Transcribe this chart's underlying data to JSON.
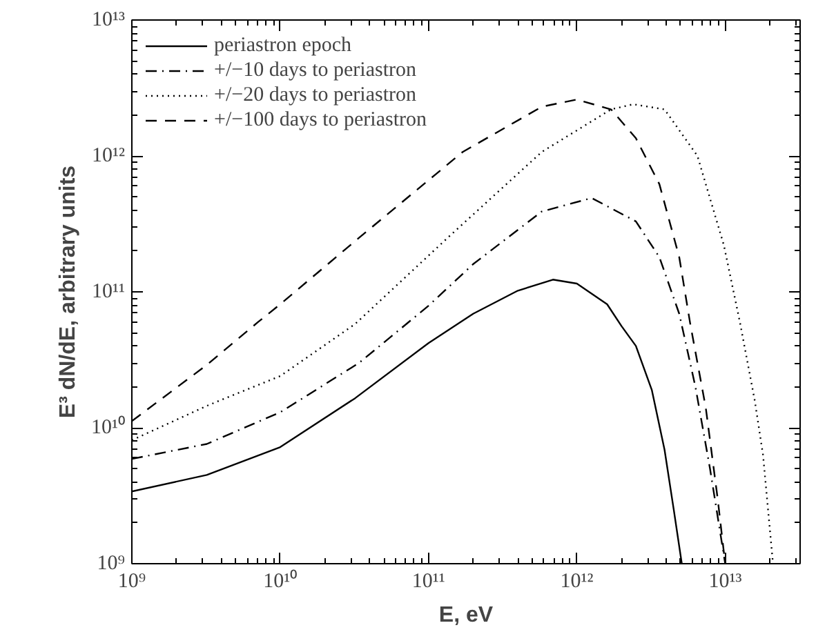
{
  "chart_data": {
    "type": "line",
    "xlabel": "E, eV",
    "ylabel": "E³ dN/dE, arbitrary units",
    "log": "xy",
    "legend": "top left",
    "grid": false,
    "xlim": [
      1000000000.0,
      32000000000000.0
    ],
    "ylim": [
      1000000000.0,
      10000000000000.0
    ],
    "xticks": [
      {
        "value": 1000000000.0,
        "label": "10⁹"
      },
      {
        "value": 10000000000.0,
        "label": "10¹⁰"
      },
      {
        "value": 100000000000.0,
        "label": "10¹¹"
      },
      {
        "value": 1000000000000.0,
        "label": "10¹²"
      },
      {
        "value": 10000000000000.0,
        "label": "10¹³"
      }
    ],
    "yticks": [
      {
        "value": 1000000000.0,
        "label": "10⁹"
      },
      {
        "value": 10000000000.0,
        "label": "10¹⁰"
      },
      {
        "value": 100000000000.0,
        "label": "10¹¹"
      },
      {
        "value": 1000000000000.0,
        "label": "10¹²"
      },
      {
        "value": 10000000000000.0,
        "label": "10¹³"
      }
    ],
    "series": [
      {
        "name": "periastron epoch",
        "color": "#000000",
        "line_style": "solid",
        "x": [
          1000000000.0,
          3200000000.0,
          10000000000.0,
          32000000000.0,
          100000000000.0,
          200000000000.0,
          400000000000.0,
          690000000000.0,
          1000000000000.0,
          1600000000000.0,
          2000000000000.0,
          2500000000000.0,
          3200000000000.0,
          3900000000000.0,
          4500000000000.0,
          5100000000000.0
        ],
        "values": [
          3400000000.0,
          4500000000.0,
          7200000000.0,
          16500000000.0,
          42000000000.0,
          69000000000.0,
          102000000000.0,
          123000000000.0,
          115000000000.0,
          81000000000.0,
          56000000000.0,
          40000000000.0,
          19000000000.0,
          6900000000.0,
          2500000000.0,
          1000000000.0
        ]
      },
      {
        "name": "+/−10 days to periastron",
        "color": "#000000",
        "line_style": "dashdot",
        "x": [
          1000000000.0,
          3200000000.0,
          10000000000.0,
          34000000000.0,
          100000000000.0,
          200000000000.0,
          580000000000.0,
          1260000000000.0,
          2500000000000.0,
          3600000000000.0,
          4900000000000.0,
          6300000000000.0,
          7900000000000.0,
          10000000000000.0
        ],
        "values": [
          5900000000.0,
          7600000000.0,
          13000000000.0,
          30000000000.0,
          79000000000.0,
          160000000000.0,
          390000000000.0,
          490000000000.0,
          330000000000.0,
          180000000000.0,
          69000000000.0,
          20000000000.0,
          5000000000.0,
          1000000000.0
        ]
      },
      {
        "name": "+/−20 days to periastron",
        "color": "#000000",
        "line_style": "dotted",
        "x": [
          1000000000.0,
          3200000000.0,
          10000000000.0,
          32000000000.0,
          140000000000.0,
          580000000000.0,
          1700000000000.0,
          2400000000000.0,
          3900000000000.0,
          6500000000000.0,
          9800000000000.0,
          12600000000000.0,
          15800000000000.0,
          18000000000000.0,
          21000000000000.0
        ],
        "values": [
          8100000000.0,
          14500000000.0,
          24000000000.0,
          58000000000.0,
          260000000000.0,
          1070000000000.0,
          2200000000000.0,
          2400000000000.0,
          2200000000000.0,
          1000000000000.0,
          220000000000.0,
          59000000000.0,
          16000000000.0,
          6300000000.0,
          1000000000.0
        ]
      },
      {
        "name": "+/−100 days to periastron",
        "color": "#000000",
        "line_style": "dashed",
        "x": [
          1000000000.0,
          3200000000.0,
          7100000000.0,
          10000000000.0,
          34000000000.0,
          170000000000.0,
          580000000000.0,
          1000000000000.0,
          1700000000000.0,
          2500000000000.0,
          3600000000000.0,
          4900000000000.0,
          5800000000000.0,
          7400000000000.0,
          8900000000000.0,
          10000000000000.0
        ],
        "values": [
          11200000000.0,
          29000000000.0,
          60000000000.0,
          81000000000.0,
          250000000000.0,
          1070000000000.0,
          2300000000000.0,
          2600000000000.0,
          2200000000000.0,
          1350000000000.0,
          620000000000.0,
          180000000000.0,
          59000000000.0,
          14000000000.0,
          3000000000.0,
          1000000000.0
        ]
      }
    ]
  }
}
